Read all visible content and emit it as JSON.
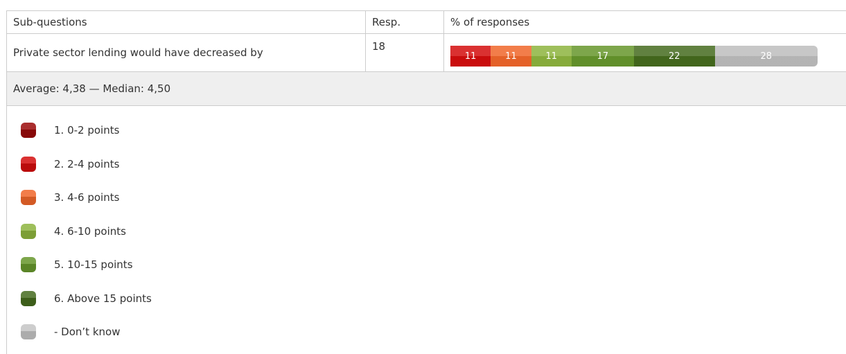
{
  "table": {
    "header": [
      "Sub-questions",
      "Resp.",
      "% of responses"
    ],
    "row": {
      "question": "Private sector lending would have decreased by",
      "responses": 18,
      "segments": [
        {
          "value": 11,
          "color": "#d40d0d"
        },
        {
          "value": 11,
          "color": "#f0662a"
        },
        {
          "value": 11,
          "color": "#8db43e"
        },
        {
          "value": 17,
          "color": "#66972c"
        },
        {
          "value": 22,
          "color": "#456b1e"
        },
        {
          "value": 28,
          "color": "#bdbdbd"
        }
      ]
    },
    "footer": "Average: 4,38 — Median: 4,50"
  },
  "legend": [
    {
      "label": "1. 0-2 points",
      "color": "#9b0a0a"
    },
    {
      "label": "2. 2-4 points",
      "color": "#d40d0d"
    },
    {
      "label": "3. 4-6 points",
      "color": "#f0662a"
    },
    {
      "label": "4. 6-10 points",
      "color": "#8db43e"
    },
    {
      "label": "5. 10-15 points",
      "color": "#66972c"
    },
    {
      "label": "6. Above 15 points",
      "color": "#456b1e"
    },
    {
      "label": "- Don’t know",
      "color": "#c4c4c4"
    }
  ]
}
